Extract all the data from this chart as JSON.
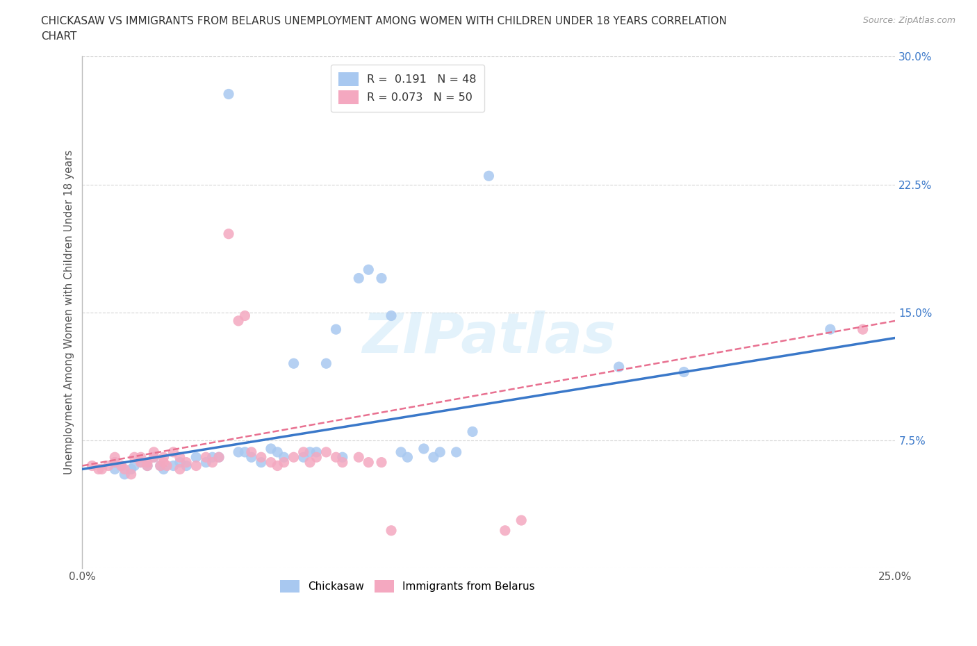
{
  "title_line1": "CHICKASAW VS IMMIGRANTS FROM BELARUS UNEMPLOYMENT AMONG WOMEN WITH CHILDREN UNDER 18 YEARS CORRELATION",
  "title_line2": "CHART",
  "source": "Source: ZipAtlas.com",
  "ylabel": "Unemployment Among Women with Children Under 18 years",
  "xlim": [
    0.0,
    0.25
  ],
  "ylim": [
    0.0,
    0.3
  ],
  "xticks": [
    0.0,
    0.05,
    0.1,
    0.15,
    0.2,
    0.25
  ],
  "yticks": [
    0.0,
    0.075,
    0.15,
    0.225,
    0.3
  ],
  "xticklabels": [
    "0.0%",
    "",
    "",
    "",
    "",
    "25.0%"
  ],
  "yticklabels": [
    "",
    "7.5%",
    "15.0%",
    "22.5%",
    "30.0%"
  ],
  "chickasaw_R": 0.191,
  "chickasaw_N": 48,
  "belarus_R": 0.073,
  "belarus_N": 50,
  "chickasaw_color": "#a8c8f0",
  "belarus_color": "#f4a8c0",
  "chickasaw_line_color": "#3a78c9",
  "belarus_line_color": "#e87090",
  "watermark": "ZIPatlas",
  "chickasaw_x": [
    0.01,
    0.01,
    0.012,
    0.013,
    0.015,
    0.016,
    0.018,
    0.02,
    0.022,
    0.024,
    0.025,
    0.028,
    0.03,
    0.032,
    0.035,
    0.038,
    0.04,
    0.042,
    0.045,
    0.048,
    0.05,
    0.052,
    0.055,
    0.058,
    0.06,
    0.062,
    0.065,
    0.068,
    0.07,
    0.072,
    0.075,
    0.078,
    0.08,
    0.085,
    0.088,
    0.092,
    0.095,
    0.098,
    0.1,
    0.105,
    0.108,
    0.11,
    0.115,
    0.12,
    0.125,
    0.165,
    0.185,
    0.23
  ],
  "chickasaw_y": [
    0.062,
    0.058,
    0.06,
    0.055,
    0.058,
    0.06,
    0.062,
    0.06,
    0.065,
    0.06,
    0.058,
    0.06,
    0.062,
    0.06,
    0.065,
    0.062,
    0.065,
    0.065,
    0.278,
    0.068,
    0.068,
    0.065,
    0.062,
    0.07,
    0.068,
    0.065,
    0.12,
    0.065,
    0.068,
    0.068,
    0.12,
    0.14,
    0.065,
    0.17,
    0.175,
    0.17,
    0.148,
    0.068,
    0.065,
    0.07,
    0.065,
    0.068,
    0.068,
    0.08,
    0.23,
    0.118,
    0.115,
    0.14
  ],
  "belarus_x": [
    0.003,
    0.005,
    0.006,
    0.008,
    0.01,
    0.01,
    0.012,
    0.013,
    0.015,
    0.016,
    0.018,
    0.018,
    0.02,
    0.02,
    0.022,
    0.022,
    0.024,
    0.025,
    0.025,
    0.026,
    0.028,
    0.03,
    0.03,
    0.032,
    0.035,
    0.038,
    0.04,
    0.042,
    0.045,
    0.048,
    0.05,
    0.052,
    0.055,
    0.058,
    0.06,
    0.062,
    0.065,
    0.068,
    0.07,
    0.072,
    0.075,
    0.078,
    0.08,
    0.085,
    0.088,
    0.092,
    0.095,
    0.13,
    0.135,
    0.24
  ],
  "belarus_y": [
    0.06,
    0.058,
    0.058,
    0.06,
    0.062,
    0.065,
    0.06,
    0.058,
    0.055,
    0.065,
    0.062,
    0.065,
    0.06,
    0.062,
    0.068,
    0.065,
    0.06,
    0.062,
    0.065,
    0.06,
    0.068,
    0.058,
    0.065,
    0.062,
    0.06,
    0.065,
    0.062,
    0.065,
    0.196,
    0.145,
    0.148,
    0.068,
    0.065,
    0.062,
    0.06,
    0.062,
    0.065,
    0.068,
    0.062,
    0.065,
    0.068,
    0.065,
    0.062,
    0.065,
    0.062,
    0.062,
    0.022,
    0.022,
    0.028,
    0.14
  ]
}
